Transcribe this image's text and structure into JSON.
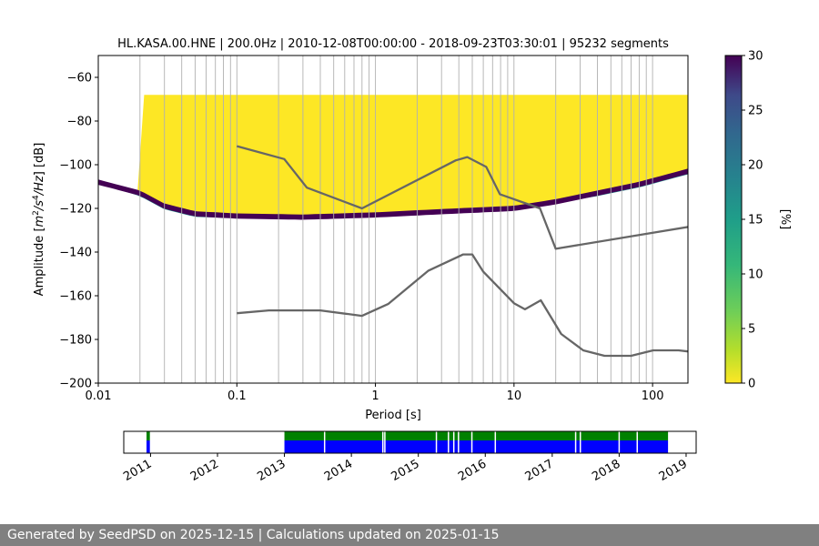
{
  "chart_data": {
    "type": "heatmap",
    "title": "HL.KASA.00.HNE | 200.0Hz | 2010-12-08T00:00:00 - 2018-09-23T03:30:01 | 95232 segments",
    "xlabel": "Period [s]",
    "ylabel_prefix": "Amplitude [",
    "ylabel_unit_base": "m",
    "ylabel_sup1": "2",
    "ylabel_mid": "/s",
    "ylabel_sup2": "4",
    "ylabel_suffix": "/Hz] [dB]",
    "x_scale": "log",
    "xlim": [
      0.01,
      180
    ],
    "ylim": [
      -200,
      -50
    ],
    "x_ticks": [
      {
        "value": 0.01,
        "label": "0.01"
      },
      {
        "value": 0.1,
        "label": "0.1"
      },
      {
        "value": 1,
        "label": "1"
      },
      {
        "value": 10,
        "label": "10"
      },
      {
        "value": 100,
        "label": "100"
      }
    ],
    "y_ticks": [
      {
        "value": -60,
        "label": "−60"
      },
      {
        "value": -80,
        "label": "−80"
      },
      {
        "value": -100,
        "label": "−100"
      },
      {
        "value": -120,
        "label": "−120"
      },
      {
        "value": -140,
        "label": "−140"
      },
      {
        "value": -160,
        "label": "−160"
      },
      {
        "value": -180,
        "label": "−180"
      },
      {
        "value": -200,
        "label": "−200"
      }
    ],
    "grid": "vertical-minor",
    "colormap": "viridis_r",
    "colorbar": {
      "label": "[%]",
      "range": [
        0,
        30
      ],
      "ticks": [
        {
          "value": 0,
          "label": "0"
        },
        {
          "value": 5,
          "label": "5"
        },
        {
          "value": 10,
          "label": "10"
        },
        {
          "value": 15,
          "label": "15"
        },
        {
          "value": 20,
          "label": "20"
        },
        {
          "value": 25,
          "label": "25"
        },
        {
          "value": 30,
          "label": "30"
        }
      ]
    },
    "density": {
      "upper_bound_db": -68,
      "x_start": 0.02,
      "lower_edge": [
        [
          0.01,
          -109
        ],
        [
          0.02,
          -115
        ],
        [
          0.03,
          -121
        ],
        [
          0.05,
          -124.5
        ],
        [
          0.1,
          -125
        ],
        [
          0.3,
          -125
        ],
        [
          1,
          -124
        ],
        [
          3,
          -123
        ],
        [
          10,
          -121
        ],
        [
          20,
          -118
        ],
        [
          40,
          -115
        ],
        [
          80,
          -111
        ],
        [
          180,
          -105
        ]
      ],
      "ridge": [
        [
          0.01,
          -108
        ],
        [
          0.02,
          -113
        ],
        [
          0.03,
          -119
        ],
        [
          0.05,
          -122.5
        ],
        [
          0.1,
          -123.5
        ],
        [
          0.3,
          -124
        ],
        [
          1,
          -123
        ],
        [
          3,
          -121.5
        ],
        [
          10,
          -120
        ],
        [
          20,
          -117
        ],
        [
          40,
          -113
        ],
        [
          80,
          -109
        ],
        [
          180,
          -103
        ]
      ]
    },
    "noise_models": [
      {
        "points": [
          [
            0.1,
            -91.5
          ],
          [
            0.22,
            -97.4
          ],
          [
            0.32,
            -110.5
          ],
          [
            0.8,
            -120
          ],
          [
            3.8,
            -98
          ],
          [
            4.6,
            -96.5
          ],
          [
            6.3,
            -101
          ],
          [
            7.9,
            -113.5
          ],
          [
            15.4,
            -120
          ],
          [
            20,
            -138.5
          ],
          [
            180,
            -128.5
          ]
        ]
      },
      {
        "points": [
          [
            0.1,
            -168
          ],
          [
            0.17,
            -166.7
          ],
          [
            0.4,
            -166.7
          ],
          [
            0.8,
            -169.2
          ],
          [
            1.24,
            -163.7
          ],
          [
            2.4,
            -148.6
          ],
          [
            4.3,
            -141.1
          ],
          [
            5,
            -141.1
          ],
          [
            6,
            -149
          ],
          [
            10,
            -163.4
          ],
          [
            12,
            -166.2
          ],
          [
            15.6,
            -162.1
          ],
          [
            21.9,
            -177.5
          ],
          [
            31.6,
            -185
          ],
          [
            45,
            -187.5
          ],
          [
            70,
            -187.5
          ],
          [
            101,
            -185
          ],
          [
            154,
            -185
          ],
          [
            180,
            -185.5
          ]
        ]
      }
    ],
    "timeline": {
      "ticks": [
        {
          "value": 2011,
          "label": "2011"
        },
        {
          "value": 2012,
          "label": "2012"
        },
        {
          "value": 2013,
          "label": "2013"
        },
        {
          "value": 2014,
          "label": "2014"
        },
        {
          "value": 2015,
          "label": "2015"
        },
        {
          "value": 2016,
          "label": "2016"
        },
        {
          "value": 2017,
          "label": "2017"
        },
        {
          "value": 2018,
          "label": "2018"
        },
        {
          "value": 2019,
          "label": "2019"
        }
      ],
      "xlim": [
        2010.6,
        2019.15
      ],
      "data_coverage": [
        [
          2010.94,
          2010.99
        ],
        [
          2013.0,
          2018.73
        ]
      ],
      "psd_coverage": [
        [
          2010.94,
          2010.99
        ],
        [
          2013.0,
          2018.73
        ]
      ],
      "psd_gaps": [
        2013.6,
        2014.47,
        2014.5,
        2015.27,
        2015.45,
        2015.53,
        2015.6,
        2015.8,
        2016.15,
        2017.35,
        2017.42,
        2018.0,
        2018.27
      ]
    }
  },
  "footer": {
    "text": "Generated by SeedPSD on 2025-12-15 | Calculations updated on 2025-01-15"
  }
}
